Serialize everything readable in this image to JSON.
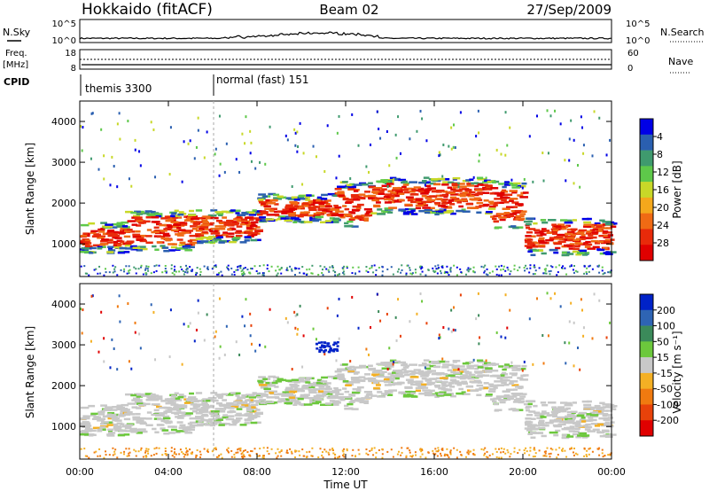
{
  "header": {
    "station": "Hokkaido (fitACF)",
    "beam": "Beam 02",
    "date": "27/Sep/2009"
  },
  "panels": {
    "nsky": {
      "left_label": "N.Sky",
      "right_label": "N.Search",
      "left_ticks": [
        "10^5",
        "10^0"
      ],
      "right_ticks": [
        "10^5",
        "10^0"
      ]
    },
    "freq": {
      "left_label": "Freq.",
      "left_unit": "[MHz]",
      "right_label": "Nave",
      "left_ticks": [
        "18",
        "8"
      ],
      "right_ticks": [
        "60",
        "0"
      ]
    },
    "cpid": {
      "label": "CPID",
      "modes": [
        {
          "name": "themis 3300",
          "start_hour": 0
        },
        {
          "name": "normal (fast) 151",
          "start_hour": 6
        }
      ]
    }
  },
  "chart_data": [
    {
      "type": "heatmap",
      "name": "power",
      "ylabel": "Slant Range [km]",
      "ylim": [
        200,
        4500
      ],
      "yticks": [
        "1000",
        "2000",
        "3000",
        "4000"
      ],
      "colorbar": {
        "label": "Power [dB]",
        "ticks": [
          "4",
          "8",
          "12",
          "16",
          "20",
          "24",
          "28"
        ],
        "colors": [
          "#0000e6",
          "#2a5fb0",
          "#3f9a6e",
          "#5ec84a",
          "#c8d828",
          "#f4a81c",
          "#f06a14",
          "#e82a0a",
          "#e00000"
        ]
      },
      "bands": [
        {
          "t0": 0.0,
          "t1": 2.0,
          "r0": 950,
          "r1": 1400,
          "level": "high"
        },
        {
          "t0": 2.0,
          "t1": 5.0,
          "r0": 1000,
          "r1": 1700,
          "level": "high"
        },
        {
          "t0": 5.0,
          "t1": 8.0,
          "r0": 1200,
          "r1": 1700,
          "level": "high"
        },
        {
          "t0": 8.0,
          "t1": 11.5,
          "r0": 1700,
          "r1": 2100,
          "level": "high"
        },
        {
          "t0": 11.5,
          "t1": 13.0,
          "r0": 1600,
          "r1": 2400,
          "level": "high"
        },
        {
          "t0": 13.0,
          "t1": 18.5,
          "r0": 1900,
          "r1": 2500,
          "level": "high"
        },
        {
          "t0": 18.5,
          "t1": 20.0,
          "r0": 1500,
          "r1": 2400,
          "level": "high"
        },
        {
          "t0": 20.0,
          "t1": 24.0,
          "r0": 900,
          "r1": 1500,
          "level": "high"
        }
      ]
    },
    {
      "type": "heatmap",
      "name": "velocity",
      "xlabel": "Time UT",
      "xlim": [
        0,
        24
      ],
      "xticks": [
        "00:00",
        "04:00",
        "08:00",
        "12:00",
        "16:00",
        "20:00",
        "00:00"
      ],
      "ylabel": "Slant Range [km]",
      "ylim": [
        200,
        4500
      ],
      "yticks": [
        "1000",
        "2000",
        "3000",
        "4000"
      ],
      "colorbar": {
        "label": "Velocity [m s⁻¹]",
        "ticks": [
          "200",
          "100",
          "50",
          "15",
          "-15",
          "-50",
          "-100",
          "-200"
        ],
        "colors": [
          "#0022c8",
          "#2e64b4",
          "#3b8a5a",
          "#6cc83c",
          "#c8c8c8",
          "#f4b024",
          "#f07a10",
          "#e8420a",
          "#e00000"
        ]
      }
    }
  ]
}
